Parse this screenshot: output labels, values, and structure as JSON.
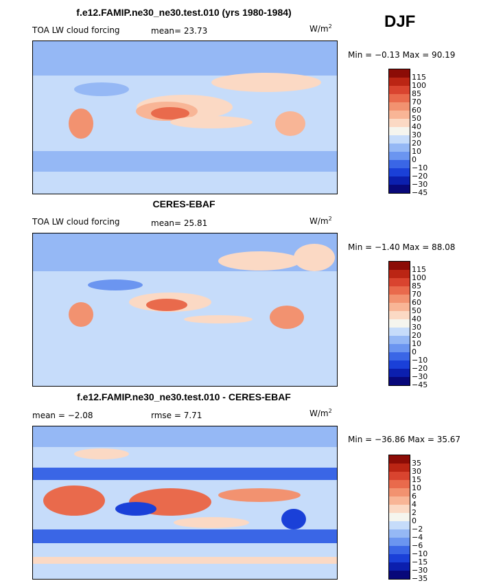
{
  "season": "DJF",
  "units_text": "W/m",
  "units_sup": "2",
  "colors": {
    "abs": [
      "#08087a",
      "#0b1fae",
      "#1a40d8",
      "#3a66e6",
      "#6b95f0",
      "#95b8f5",
      "#c6dcfa",
      "#f5f5ee",
      "#fbd9c4",
      "#f8b596",
      "#f29270",
      "#e96a4c",
      "#d9442f",
      "#bb2514",
      "#8c0c06"
    ],
    "diff": [
      "#08087a",
      "#0b1fae",
      "#1a40d8",
      "#3a66e6",
      "#6b95f0",
      "#95b8f5",
      "#c6dcfa",
      "#f5f5ee",
      "#fbd9c4",
      "#f8b596",
      "#f29270",
      "#e96a4c",
      "#d9442f",
      "#bb2514",
      "#8c0c06"
    ]
  },
  "panels": [
    {
      "title": "f.e12.FAMIP.ne30_ne30.test.010 (yrs 1980-1984)",
      "left_label": "TOA LW cloud forcing",
      "stat_text": "mean=  23.73",
      "minmax_text": "Min =  −0.13 Max =  90.19"
    },
    {
      "title": "CERES-EBAF",
      "left_label": "TOA LW cloud forcing",
      "stat_text": "mean=  25.81",
      "minmax_text": "Min =  −1.40 Max =  88.08"
    },
    {
      "title": "f.e12.FAMIP.ne30_ne30.test.010 - CERES-EBAF",
      "left_label": "mean =  −2.08",
      "stat_text": "rmse =   7.71",
      "minmax_text": "Min = −36.86 Max =  35.67"
    }
  ],
  "chart_data": [
    {
      "type": "heatmap",
      "title": "f.e12.FAMIP.ne30_ne30.test.010 (yrs 1980-1984)",
      "variable": "TOA LW cloud forcing",
      "units": "W/m2",
      "mean": 23.73,
      "min": -0.13,
      "max": 90.19,
      "colorbar_levels": [
        "115",
        "100",
        "85",
        "70",
        "60",
        "50",
        "40",
        "30",
        "20",
        "10",
        "0",
        "−10",
        "−20",
        "−30",
        "−45"
      ]
    },
    {
      "type": "heatmap",
      "title": "CERES-EBAF",
      "variable": "TOA LW cloud forcing",
      "units": "W/m2",
      "mean": 25.81,
      "min": -1.4,
      "max": 88.08,
      "colorbar_levels": [
        "115",
        "100",
        "85",
        "70",
        "60",
        "50",
        "40",
        "30",
        "20",
        "10",
        "0",
        "−10",
        "−20",
        "−30",
        "−45"
      ]
    },
    {
      "type": "heatmap",
      "title": "f.e12.FAMIP.ne30_ne30.test.010 - CERES-EBAF",
      "units": "W/m2",
      "mean": -2.08,
      "rmse": 7.71,
      "min": -36.86,
      "max": 35.67,
      "colorbar_levels": [
        "35",
        "30",
        "15",
        "10",
        "6",
        "4",
        "2",
        "0",
        "−2",
        "−4",
        "−6",
        "−10",
        "−15",
        "−30",
        "−35"
      ]
    }
  ]
}
